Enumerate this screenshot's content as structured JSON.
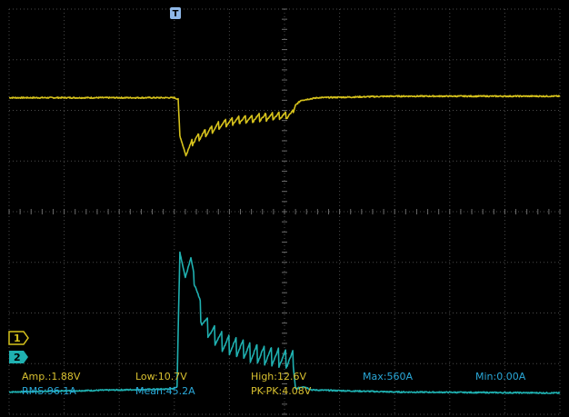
{
  "colors": {
    "ch1": "#d6c21c",
    "ch2": "#1fb0b0",
    "meas_ch1": "#d8c030",
    "meas_ch2": "#2aa8d8",
    "grid": "#4a4a4a",
    "background": "#000000",
    "trigger": "#8fb8e8"
  },
  "markers": {
    "trigger_label": "T",
    "ch1_label": "1",
    "ch2_label": "2"
  },
  "measurements": {
    "amp": "Amp.:1.88V",
    "low": "Low:10.7V",
    "high": "High:12.6V",
    "max": "Max:560A",
    "min": "Min:0.00A",
    "rms": "RMS:96.1A",
    "mean": "Mean:45.2A",
    "pkpk": "PK-PK:4.08V"
  },
  "chart_data": {
    "type": "line",
    "title": "",
    "xlabel": "",
    "ylabel": "",
    "grid": true,
    "x_divisions": 10,
    "y_divisions": 8,
    "xlim": [
      0,
      10
    ],
    "ylim": [
      -4,
      4
    ],
    "series": [
      {
        "channel": "ch1",
        "points": [
          [
            0,
            2.25
          ],
          [
            3.0,
            2.25
          ],
          [
            3.07,
            2.22
          ],
          [
            3.1,
            1.5
          ],
          [
            3.2,
            1.15
          ],
          [
            3.35,
            1.4
          ],
          [
            3.55,
            1.55
          ],
          [
            3.8,
            1.7
          ],
          [
            4.1,
            1.8
          ],
          [
            4.5,
            1.85
          ],
          [
            5.0,
            1.9
          ],
          [
            5.15,
            1.92
          ],
          [
            5.2,
            2.1
          ],
          [
            5.3,
            2.2
          ],
          [
            5.6,
            2.25
          ],
          [
            7,
            2.28
          ],
          [
            10,
            2.28
          ]
        ],
        "ripple": [
          [
            3.2,
            5.15,
            0.08,
            16
          ]
        ]
      },
      {
        "channel": "ch2",
        "points": [
          [
            0,
            -3.56
          ],
          [
            2.97,
            -3.5
          ],
          [
            3.05,
            -3.45
          ],
          [
            3.1,
            -0.8
          ],
          [
            3.2,
            -1.3
          ],
          [
            3.3,
            -0.9
          ],
          [
            3.4,
            -1.5
          ],
          [
            3.5,
            -2.1
          ],
          [
            3.65,
            -2.35
          ],
          [
            3.9,
            -2.6
          ],
          [
            4.3,
            -2.75
          ],
          [
            4.7,
            -2.85
          ],
          [
            5.15,
            -2.95
          ],
          [
            5.2,
            -3.5
          ],
          [
            5.35,
            -3.45
          ],
          [
            5.5,
            -3.52
          ],
          [
            7,
            -3.56
          ],
          [
            10,
            -3.58
          ]
        ],
        "ripple": [
          [
            3.35,
            5.15,
            0.2,
            14
          ]
        ]
      }
    ]
  }
}
